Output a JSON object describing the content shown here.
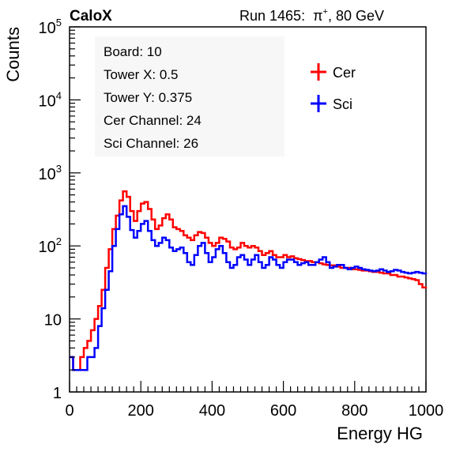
{
  "header": {
    "experiment": "CaloX",
    "run_label": "Run 1465:",
    "particle": "π",
    "particle_charge": "+",
    "beam_energy": ", 80 GeV"
  },
  "info_box": {
    "lines": [
      "Board: 10",
      "Tower X: 0.5",
      "Tower Y: 0.375",
      "Cer Channel: 24",
      "Sci Channel: 26"
    ]
  },
  "chart_data": {
    "type": "line",
    "xlabel": "Energy HG",
    "ylabel": "Counts",
    "xlim": [
      0,
      1000
    ],
    "ylim": [
      1,
      100000
    ],
    "log_y": true,
    "legend_position": "top-right",
    "x_ticks": [
      {
        "value": 0,
        "label": "0"
      },
      {
        "value": 200,
        "label": "200"
      },
      {
        "value": 400,
        "label": "400"
      },
      {
        "value": 600,
        "label": "600"
      },
      {
        "value": 800,
        "label": "800"
      },
      {
        "value": 1000,
        "label": "1000"
      }
    ],
    "y_ticks": [
      {
        "value": 1,
        "base": "1",
        "exp": ""
      },
      {
        "value": 10,
        "base": "10",
        "exp": ""
      },
      {
        "value": 100,
        "base": "10",
        "exp": "2"
      },
      {
        "value": 1000,
        "base": "10",
        "exp": "3"
      },
      {
        "value": 10000,
        "base": "10",
        "exp": "4"
      },
      {
        "value": 100000,
        "base": "10",
        "exp": "5"
      }
    ],
    "x": [
      0,
      10,
      20,
      30,
      40,
      50,
      60,
      70,
      80,
      90,
      100,
      110,
      120,
      130,
      140,
      150,
      160,
      170,
      180,
      190,
      200,
      210,
      220,
      230,
      240,
      250,
      260,
      270,
      280,
      290,
      300,
      310,
      320,
      330,
      340,
      350,
      360,
      370,
      380,
      390,
      400,
      410,
      420,
      430,
      440,
      450,
      460,
      470,
      480,
      490,
      500,
      510,
      520,
      530,
      540,
      550,
      560,
      570,
      580,
      590,
      600,
      610,
      620,
      630,
      640,
      650,
      660,
      670,
      680,
      690,
      700,
      710,
      720,
      730,
      740,
      750,
      760,
      770,
      780,
      790,
      800,
      810,
      820,
      830,
      840,
      850,
      860,
      870,
      880,
      890,
      900,
      910,
      920,
      930,
      940,
      950,
      960,
      970,
      980,
      990,
      1000
    ],
    "series": [
      {
        "name": "Cer",
        "color": "#ff0000",
        "values": [
          3,
          2,
          2,
          3,
          4,
          5,
          7,
          10,
          15,
          25,
          50,
          90,
          170,
          260,
          420,
          560,
          470,
          300,
          220,
          300,
          380,
          400,
          320,
          230,
          170,
          190,
          240,
          270,
          230,
          180,
          170,
          160,
          140,
          130,
          120,
          140,
          155,
          150,
          130,
          110,
          100,
          110,
          130,
          125,
          115,
          95,
          90,
          95,
          110,
          100,
          95,
          100,
          95,
          85,
          75,
          80,
          85,
          75,
          70,
          70,
          75,
          70,
          72,
          68,
          66,
          64,
          62,
          62,
          60,
          60,
          58,
          56,
          55,
          54,
          54,
          52,
          50,
          50,
          50,
          48,
          48,
          47,
          46,
          46,
          45,
          44,
          44,
          43,
          42,
          42,
          40,
          40,
          38,
          38,
          37,
          36,
          35,
          34,
          30,
          27,
          26
        ]
      },
      {
        "name": "Sci",
        "color": "#0000ff",
        "values": [
          3,
          2,
          2,
          2,
          2,
          3,
          3,
          4,
          8,
          14,
          25,
          45,
          100,
          170,
          270,
          350,
          250,
          165,
          130,
          160,
          200,
          220,
          160,
          120,
          100,
          110,
          130,
          120,
          95,
          85,
          90,
          95,
          80,
          60,
          55,
          75,
          100,
          110,
          80,
          60,
          70,
          90,
          100,
          80,
          60,
          50,
          55,
          70,
          75,
          65,
          55,
          65,
          75,
          60,
          50,
          55,
          70,
          65,
          55,
          50,
          60,
          65,
          65,
          60,
          55,
          58,
          60,
          55,
          55,
          60,
          65,
          70,
          60,
          50,
          52,
          55,
          55,
          50,
          48,
          50,
          52,
          50,
          48,
          47,
          46,
          45,
          46,
          48,
          46,
          44,
          45,
          47,
          46,
          44,
          43,
          42,
          43,
          44,
          43,
          42,
          43
        ]
      }
    ]
  }
}
